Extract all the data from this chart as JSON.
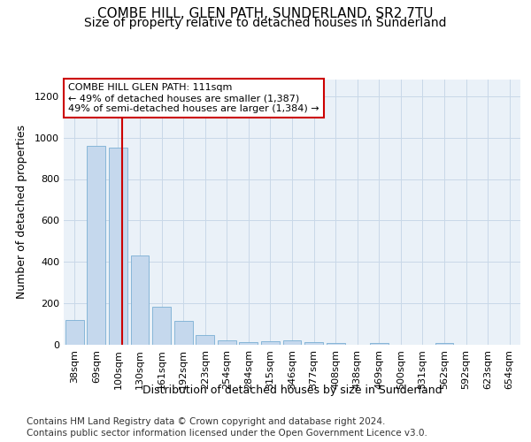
{
  "title": "COMBE HILL, GLEN PATH, SUNDERLAND, SR2 7TU",
  "subtitle": "Size of property relative to detached houses in Sunderland",
  "xlabel": "Distribution of detached houses by size in Sunderland",
  "ylabel": "Number of detached properties",
  "categories": [
    "38sqm",
    "69sqm",
    "100sqm",
    "130sqm",
    "161sqm",
    "192sqm",
    "223sqm",
    "254sqm",
    "284sqm",
    "315sqm",
    "346sqm",
    "377sqm",
    "408sqm",
    "438sqm",
    "469sqm",
    "500sqm",
    "531sqm",
    "562sqm",
    "592sqm",
    "623sqm",
    "654sqm"
  ],
  "values": [
    120,
    960,
    950,
    430,
    185,
    115,
    48,
    20,
    12,
    18,
    20,
    12,
    10,
    0,
    10,
    0,
    0,
    10,
    0,
    0,
    0
  ],
  "bar_color": "#c5d8ed",
  "bar_edge_color": "#7aafd4",
  "property_line_x": 2.18,
  "property_line_color": "#cc0000",
  "annotation_text": "COMBE HILL GLEN PATH: 111sqm\n← 49% of detached houses are smaller (1,387)\n49% of semi-detached houses are larger (1,384) →",
  "annotation_box_color": "#ffffff",
  "annotation_box_edge_color": "#cc0000",
  "ylim": [
    0,
    1280
  ],
  "yticks": [
    0,
    200,
    400,
    600,
    800,
    1000,
    1200
  ],
  "footer_line1": "Contains HM Land Registry data © Crown copyright and database right 2024.",
  "footer_line2": "Contains public sector information licensed under the Open Government Licence v3.0.",
  "bg_color": "#eaf1f8",
  "grid_color": "#c8d8e8",
  "title_fontsize": 11,
  "subtitle_fontsize": 10,
  "axis_label_fontsize": 9,
  "tick_fontsize": 8,
  "annotation_fontsize": 8,
  "footer_fontsize": 7.5
}
